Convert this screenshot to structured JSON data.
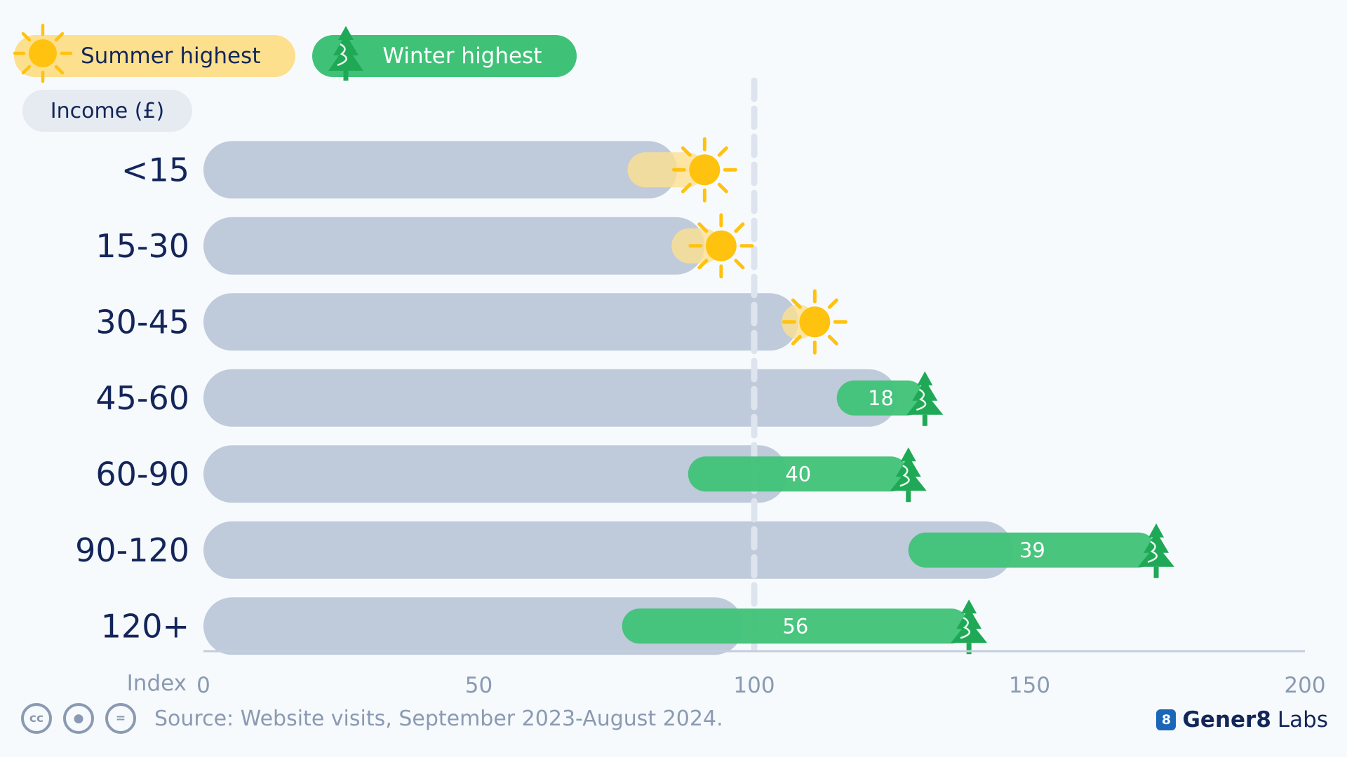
{
  "legend": {
    "summer_label": "Summer highest",
    "winter_label": "Winter highest"
  },
  "income_label": "Income (£)",
  "footer": {
    "source": "Source: Website visits, September 2023-August 2024.",
    "brand_bold": "Gener8",
    "brand_rest": "Labs",
    "brand_mark": "8"
  },
  "colors": {
    "base_bar": "#bfcadb",
    "summer": "#fde08e",
    "summer_icon": "#ffc20e",
    "winter": "#3fc277",
    "winter_icon": "#1fa956",
    "text_dark": "#13265a",
    "muted": "#8a9ab2"
  },
  "chart_data": {
    "type": "bar",
    "orientation": "horizontal",
    "xlabel": "Index",
    "xlim": [
      0,
      200
    ],
    "xticks": [
      0,
      50,
      100,
      150,
      200
    ],
    "reference_line": 100,
    "categories": [
      "<15",
      "15-30",
      "30-45",
      "45-60",
      "60-90",
      "90-120",
      "120+"
    ],
    "series": [
      {
        "values": [
          86,
          91,
          108,
          126,
          106,
          147,
          98
        ]
      },
      {
        "values": [
          77,
          85,
          105,
          115,
          88,
          128,
          76
        ]
      },
      {
        "values": [
          91,
          94,
          111,
          131,
          128,
          173,
          139
        ]
      }
    ],
    "season_highest": [
      "summer",
      "summer",
      "summer",
      "winter",
      "winter",
      "winter",
      "winter"
    ],
    "data_labels": [
      "",
      "",
      "",
      "18",
      "40",
      "39",
      "56"
    ]
  }
}
